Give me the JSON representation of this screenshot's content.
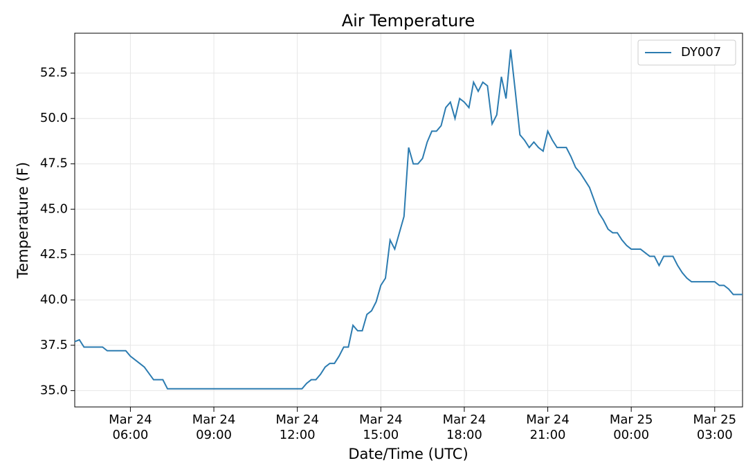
{
  "chart_data": {
    "type": "line",
    "title": "Air Temperature",
    "xlabel": "Date/Time (UTC)",
    "ylabel": "Temperature (F)",
    "x": [
      "Mar 24 04:00",
      "Mar 24 04:10",
      "Mar 24 04:20",
      "Mar 24 04:40",
      "Mar 24 05:00",
      "Mar 24 05:10",
      "Mar 24 05:30",
      "Mar 24 05:50",
      "Mar 24 06:00",
      "Mar 24 06:20",
      "Mar 24 06:30",
      "Mar 24 06:50",
      "Mar 24 07:10",
      "Mar 24 07:20",
      "Mar 24 08:00",
      "Mar 24 09:00",
      "Mar 24 10:00",
      "Mar 24 11:00",
      "Mar 24 12:00",
      "Mar 24 12:10",
      "Mar 24 12:20",
      "Mar 24 12:30",
      "Mar 24 12:40",
      "Mar 24 12:50",
      "Mar 24 13:00",
      "Mar 24 13:10",
      "Mar 24 13:20",
      "Mar 24 13:30",
      "Mar 24 13:40",
      "Mar 24 13:50",
      "Mar 24 14:00",
      "Mar 24 14:10",
      "Mar 24 14:20",
      "Mar 24 14:30",
      "Mar 24 14:40",
      "Mar 24 14:50",
      "Mar 24 15:00",
      "Mar 24 15:10",
      "Mar 24 15:20",
      "Mar 24 15:30",
      "Mar 24 15:40",
      "Mar 24 15:50",
      "Mar 24 16:00",
      "Mar 24 16:10",
      "Mar 24 16:20",
      "Mar 24 16:30",
      "Mar 24 16:40",
      "Mar 24 16:50",
      "Mar 24 17:00",
      "Mar 24 17:10",
      "Mar 24 17:20",
      "Mar 24 17:30",
      "Mar 24 17:40",
      "Mar 24 17:50",
      "Mar 24 18:00",
      "Mar 24 18:10",
      "Mar 24 18:20",
      "Mar 24 18:30",
      "Mar 24 18:40",
      "Mar 24 18:50",
      "Mar 24 19:00",
      "Mar 24 19:10",
      "Mar 24 19:20",
      "Mar 24 19:30",
      "Mar 24 19:40",
      "Mar 24 19:50",
      "Mar 24 20:00",
      "Mar 24 20:10",
      "Mar 24 20:20",
      "Mar 24 20:30",
      "Mar 24 20:40",
      "Mar 24 20:50",
      "Mar 24 21:00",
      "Mar 24 21:10",
      "Mar 24 21:20",
      "Mar 24 21:30",
      "Mar 24 21:40",
      "Mar 24 21:50",
      "Mar 24 22:00",
      "Mar 24 22:10",
      "Mar 24 22:20",
      "Mar 24 22:30",
      "Mar 24 22:50",
      "Mar 24 23:00",
      "Mar 24 23:10",
      "Mar 24 23:20",
      "Mar 24 23:30",
      "Mar 24 23:40",
      "Mar 24 23:50",
      "Mar 25 00:00",
      "Mar 25 00:10",
      "Mar 25 00:20",
      "Mar 25 00:30",
      "Mar 25 00:40",
      "Mar 25 00:50",
      "Mar 25 01:00",
      "Mar 25 01:10",
      "Mar 25 01:20",
      "Mar 25 01:30",
      "Mar 25 01:40",
      "Mar 25 01:50",
      "Mar 25 02:00",
      "Mar 25 02:10",
      "Mar 25 02:20",
      "Mar 25 02:40",
      "Mar 25 03:00",
      "Mar 25 03:10",
      "Mar 25 03:20",
      "Mar 25 03:30",
      "Mar 25 03:40",
      "Mar 25 04:00"
    ],
    "series": [
      {
        "name": "DY007",
        "color": "#2b7bb0",
        "values": [
          37.7,
          37.8,
          37.4,
          37.4,
          37.4,
          37.2,
          37.2,
          37.2,
          36.9,
          36.5,
          36.3,
          35.6,
          35.6,
          35.1,
          35.1,
          35.1,
          35.1,
          35.1,
          35.1,
          35.1,
          35.4,
          35.6,
          35.6,
          35.9,
          36.3,
          36.5,
          36.5,
          36.9,
          37.4,
          37.4,
          38.6,
          38.3,
          38.3,
          39.2,
          39.4,
          39.9,
          40.8,
          41.2,
          43.3,
          42.8,
          43.7,
          44.6,
          48.4,
          47.5,
          47.5,
          47.8,
          48.7,
          49.3,
          49.3,
          49.6,
          50.6,
          50.9,
          50.0,
          51.1,
          50.9,
          50.6,
          52.0,
          51.5,
          52.0,
          51.8,
          49.7,
          50.2,
          52.3,
          51.1,
          53.8,
          51.5,
          49.1,
          48.8,
          48.4,
          48.7,
          48.4,
          48.2,
          49.3,
          48.8,
          48.4,
          48.4,
          48.4,
          47.9,
          47.3,
          47.0,
          46.6,
          46.2,
          44.8,
          44.4,
          43.9,
          43.7,
          43.7,
          43.3,
          43.0,
          42.8,
          42.8,
          42.8,
          42.6,
          42.4,
          42.4,
          41.9,
          42.4,
          42.4,
          42.4,
          41.9,
          41.5,
          41.2,
          41.0,
          41.0,
          41.0,
          41.0,
          40.8,
          40.8,
          40.6,
          40.3,
          40.3
        ]
      }
    ],
    "xlim": [
      "Mar 24 04:00",
      "Mar 25 04:00"
    ],
    "xticks": [
      {
        "value": "Mar 24 06:00",
        "label": "Mar 24\n06:00"
      },
      {
        "value": "Mar 24 09:00",
        "label": "Mar 24\n09:00"
      },
      {
        "value": "Mar 24 12:00",
        "label": "Mar 24\n12:00"
      },
      {
        "value": "Mar 24 15:00",
        "label": "Mar 24\n15:00"
      },
      {
        "value": "Mar 24 18:00",
        "label": "Mar 24\n18:00"
      },
      {
        "value": "Mar 24 21:00",
        "label": "Mar 24\n21:00"
      },
      {
        "value": "Mar 25 00:00",
        "label": "Mar 25\n00:00"
      },
      {
        "value": "Mar 25 03:00",
        "label": "Mar 25\n03:00"
      }
    ],
    "ylim": [
      34.1,
      54.7
    ],
    "yticks": [
      {
        "value": 35,
        "label": "35.0"
      },
      37.5,
      {
        "value": 40,
        "label": "40.0"
      },
      42.5,
      {
        "value": 45,
        "label": "45.0"
      },
      47.5,
      {
        "value": 50,
        "label": "50.0"
      },
      52.5
    ],
    "grid": true,
    "legend": "upper right"
  }
}
